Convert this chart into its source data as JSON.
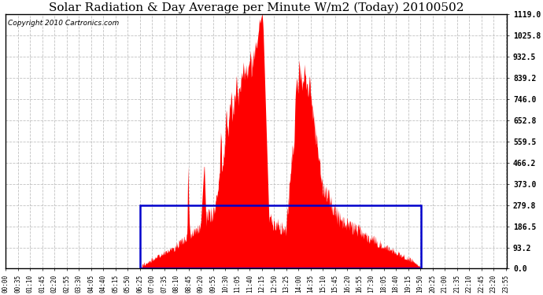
{
  "title": "Solar Radiation & Day Average per Minute W/m2 (Today) 20100502",
  "copyright": "Copyright 2010 Cartronics.com",
  "yticks": [
    0.0,
    93.2,
    186.5,
    279.8,
    373.0,
    466.2,
    559.5,
    652.8,
    746.0,
    839.2,
    932.5,
    1025.8,
    1119.0
  ],
  "ymax": 1119.0,
  "fill_color": "#ff0000",
  "avg_box_color": "#0000cc",
  "avg_value": 279.8,
  "background_color": "white",
  "plot_bg_color": "white",
  "grid_color": "#bbbbbb",
  "title_fontsize": 11,
  "copyright_fontsize": 6.5,
  "sunrise_min": 385,
  "sunset_min": 1191,
  "tick_step": 35
}
